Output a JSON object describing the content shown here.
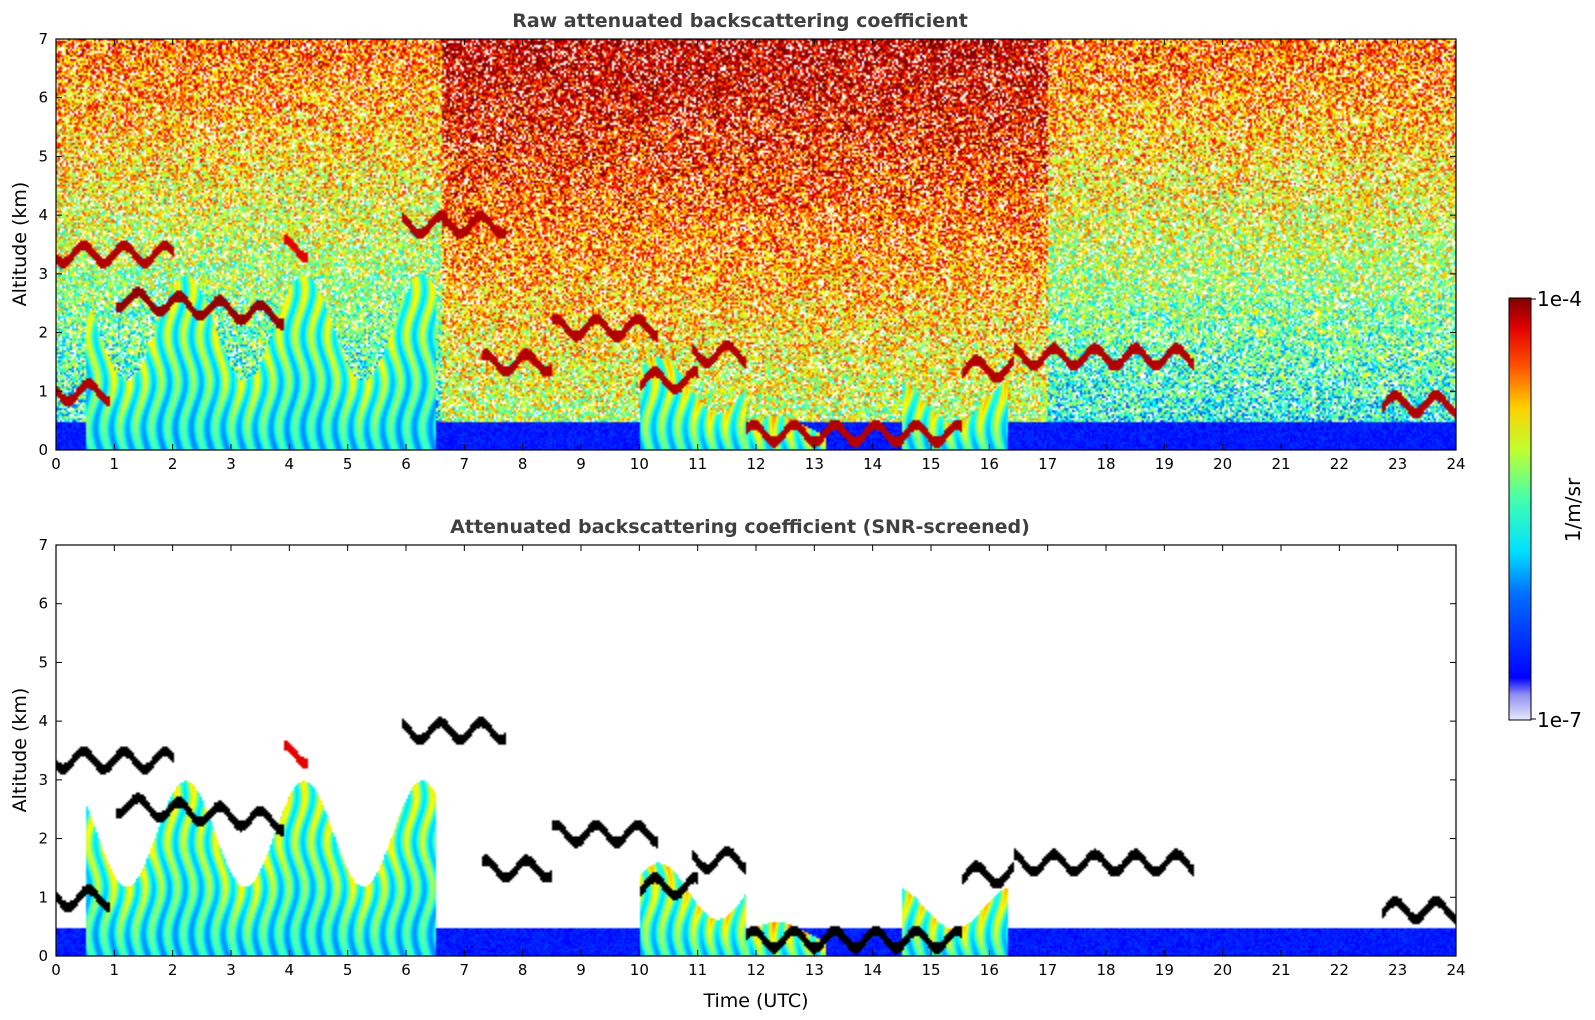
{
  "chart_data": [
    {
      "type": "heatmap",
      "title": "Raw attenuated backscattering coefficient",
      "ylabel": "Altitude (km)",
      "xlabel": "",
      "xlim": [
        0,
        24
      ],
      "ylim": [
        0,
        7
      ],
      "xticks": [
        "0",
        "1",
        "2",
        "3",
        "4",
        "5",
        "6",
        "7",
        "8",
        "9",
        "10",
        "11",
        "12",
        "13",
        "14",
        "15",
        "16",
        "17",
        "18",
        "19",
        "20",
        "21",
        "22",
        "23",
        "24"
      ],
      "yticks": [
        "0",
        "1",
        "2",
        "3",
        "4",
        "5",
        "6",
        "7"
      ],
      "features": [
        {
          "kind": "layer",
          "t0": 0.0,
          "t1": 0.9,
          "alt": 1.0,
          "intensity": 0.95
        },
        {
          "kind": "layer",
          "t0": 0.0,
          "t1": 2.0,
          "alt": 3.35,
          "intensity": 0.95
        },
        {
          "kind": "layer",
          "t0": 1.0,
          "t1": 3.9,
          "alt": 2.6,
          "intensity": 0.98
        },
        {
          "kind": "layer",
          "t0": 3.9,
          "t1": 4.3,
          "alt": 3.45,
          "intensity": 0.9
        },
        {
          "kind": "layer",
          "t0": 5.9,
          "t1": 7.7,
          "alt": 3.85,
          "intensity": 0.95
        },
        {
          "kind": "layer",
          "t0": 7.3,
          "t1": 8.5,
          "alt": 1.5,
          "intensity": 0.95
        },
        {
          "kind": "layer",
          "t0": 8.5,
          "t1": 10.3,
          "alt": 2.1,
          "intensity": 0.95
        },
        {
          "kind": "layer",
          "t0": 10.0,
          "t1": 11.0,
          "alt": 1.2,
          "intensity": 0.95
        },
        {
          "kind": "layer",
          "t0": 10.9,
          "t1": 11.8,
          "alt": 1.65,
          "intensity": 0.95
        },
        {
          "kind": "layer",
          "t0": 11.8,
          "t1": 15.5,
          "alt": 0.3,
          "intensity": 0.95
        },
        {
          "kind": "layer",
          "t0": 15.5,
          "t1": 16.4,
          "alt": 1.4,
          "intensity": 0.95
        },
        {
          "kind": "layer",
          "t0": 16.4,
          "t1": 19.5,
          "alt": 1.6,
          "intensity": 0.95
        },
        {
          "kind": "layer",
          "t0": 22.7,
          "t1": 24.0,
          "alt": 0.8,
          "intensity": 0.95
        },
        {
          "kind": "fallstreak",
          "t0": 0.5,
          "t1": 6.5,
          "alt": 3.0,
          "intensity": 0.65
        },
        {
          "kind": "fallstreak",
          "t0": 10.0,
          "t1": 11.8,
          "alt": 1.6,
          "intensity": 0.7
        },
        {
          "kind": "fallstreak",
          "t0": 11.8,
          "t1": 13.2,
          "alt": 0.6,
          "intensity": 0.75
        },
        {
          "kind": "fallstreak",
          "t0": 14.5,
          "t1": 16.3,
          "alt": 1.2,
          "intensity": 0.7
        }
      ],
      "background": "noise increasing with altitude; highest 6.6-17 UTC; near-surface boundary layer low (blue)"
    },
    {
      "type": "heatmap",
      "title": "Attenuated backscattering coefficient (SNR-screened)",
      "ylabel": "Altitude (km)",
      "xlabel": "Time (UTC)",
      "xlim": [
        0,
        24
      ],
      "ylim": [
        0,
        7
      ],
      "xticks": [
        "0",
        "1",
        "2",
        "3",
        "4",
        "5",
        "6",
        "7",
        "8",
        "9",
        "10",
        "11",
        "12",
        "13",
        "14",
        "15",
        "16",
        "17",
        "18",
        "19",
        "20",
        "21",
        "22",
        "23",
        "24"
      ],
      "yticks": [
        "0",
        "1",
        "2",
        "3",
        "4",
        "5",
        "6",
        "7"
      ],
      "note": "same features as raw panel with noisy pixels removed; saturated values drawn in black"
    }
  ],
  "colorbar": {
    "label": "1/m/sr",
    "max_label": "1e-4",
    "min_label": "1e-7",
    "colormap": "jet",
    "scale": "log"
  }
}
